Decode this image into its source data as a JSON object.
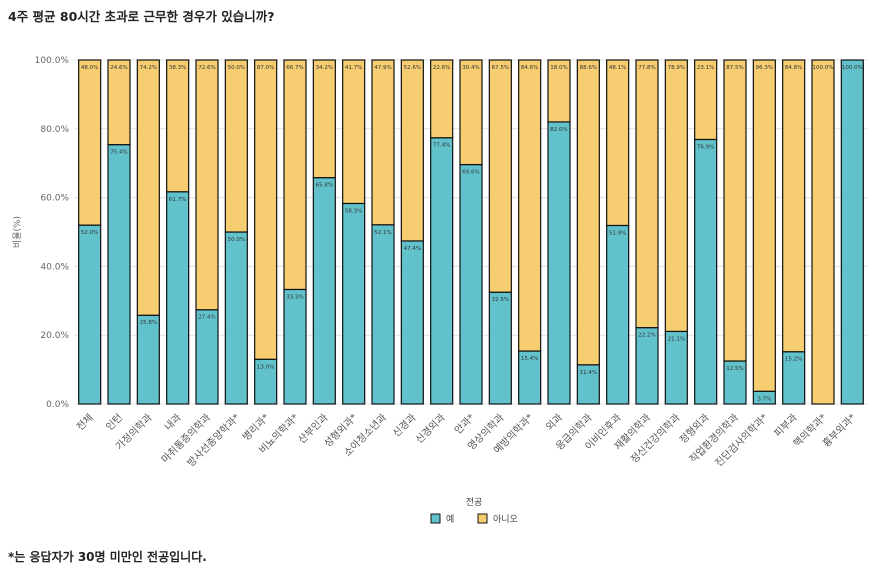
{
  "title": "4주 평균 80시간 초과로 근무한 경우가 있습니까?",
  "footnote": "*는 응답자가 30명 미만인 전공입니다.",
  "colors": {
    "yes": "#62c2cc",
    "no": "#f6cd70",
    "border": "#111111",
    "grid": "#e0e0e0"
  },
  "chart_data": {
    "type": "bar",
    "stacked": true,
    "ylabel": "비율(%)",
    "ylim": [
      0,
      100
    ],
    "yticks": [
      "0.0%",
      "20.0%",
      "40.0%",
      "60.0%",
      "80.0%",
      "100.0%"
    ],
    "legend_title": "전공",
    "legend_position": "bottom",
    "categories": [
      "전체",
      "인턴",
      "가정의학과",
      "내과",
      "마취통증의학과",
      "방사선종양학과*",
      "병리과*",
      "비뇨의학과*",
      "산부인과",
      "성형외과*",
      "소아청소년과",
      "신경과",
      "신경외과",
      "안과*",
      "영상의학과",
      "예방의학과*",
      "외과",
      "응급의학과",
      "이비인후과",
      "재활의학과",
      "정신건강의학과",
      "정형외과",
      "직업환경의학과",
      "진단검사의학과*",
      "피부과",
      "핵의학과*",
      "흉부외과*"
    ],
    "series": [
      {
        "name": "예",
        "values": [
          52.0,
          75.4,
          25.8,
          61.7,
          27.4,
          50.0,
          13.0,
          33.3,
          65.8,
          58.3,
          52.1,
          47.4,
          77.4,
          69.6,
          32.5,
          15.4,
          82.0,
          11.4,
          51.9,
          22.2,
          21.1,
          76.9,
          12.5,
          3.7,
          15.2,
          0,
          100.0
        ],
        "labels": [
          "52.0%",
          "75.4%",
          "25.8%",
          "61.7%",
          "27.4%",
          "50.0%",
          "13.0%",
          "33.3%",
          "65.8%",
          "58.3%",
          "52.1%",
          "47.4%",
          "77.4%",
          "69.6%",
          "32.5%",
          "15.4%",
          "82.0%",
          "11.4%",
          "51.9%",
          "22.2%",
          "21.1%",
          "76.9%",
          "12.5%",
          "3.7%",
          "15.2%",
          "",
          "100.0%"
        ]
      },
      {
        "name": "아니오",
        "values": [
          48.0,
          24.6,
          74.2,
          38.3,
          72.6,
          50.0,
          87.0,
          66.7,
          34.2,
          41.7,
          47.9,
          52.6,
          22.6,
          30.4,
          67.5,
          84.6,
          18.0,
          88.6,
          48.1,
          77.8,
          78.9,
          23.1,
          87.5,
          96.3,
          84.8,
          100.0,
          0
        ],
        "labels": [
          "48.0%",
          "24.6%",
          "74.2%",
          "38.3%",
          "72.6%",
          "50.0%",
          "87.0%",
          "66.7%",
          "34.2%",
          "41.7%",
          "47.9%",
          "52.6%",
          "22.6%",
          "30.4%",
          "67.5%",
          "84.6%",
          "18.0%",
          "88.6%",
          "48.1%",
          "77.8%",
          "78.9%",
          "23.1%",
          "87.5%",
          "96.3%",
          "84.8%",
          "100.0%",
          ""
        ]
      }
    ]
  }
}
